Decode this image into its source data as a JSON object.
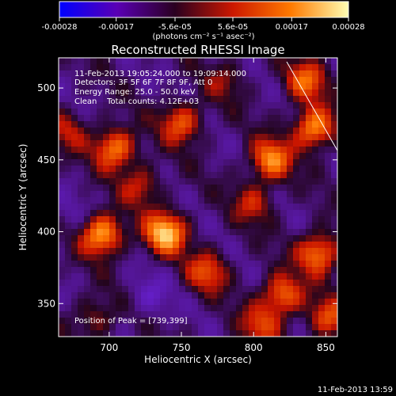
{
  "chart_data": {
    "type": "heatmap",
    "title": "Reconstructed RHESSI Image",
    "xlabel": "Heliocentric X (arcsec)",
    "ylabel": "Heliocentric Y (arcsec)",
    "xlim": [
      665,
      858
    ],
    "ylim": [
      327,
      521
    ],
    "x_ticks": [
      700,
      750,
      800,
      850
    ],
    "y_ticks": [
      350,
      400,
      450,
      500
    ],
    "colorbar": {
      "ticks": [
        "-0.00028",
        "-0.00017",
        "-5.6e-05",
        "5.6e-05",
        "0.00017",
        "0.00028"
      ],
      "tick_values": [
        -0.00028,
        -0.00017,
        -5.6e-05,
        5.6e-05,
        0.00017,
        0.00028
      ],
      "range": [
        -0.00028,
        0.00028
      ],
      "unit_label": "(photons cm⁻² s⁻¹ asec⁻²)",
      "colors": [
        "#0000ff",
        "#5a00b4",
        "#2a0020",
        "#cc1800",
        "#ff7a00",
        "#ffffb4"
      ]
    },
    "annotations": [
      "11-Feb-2013 19:05:24.000 to 19:09:14.000",
      "Detectors: 3F 5F 6F 7F 8F 9F, Att 0",
      "Energy Range: 25.0 - 50.0 keV",
      "Clean    Total counts: 4.12E+03",
      "Position of Peak = [739,399]"
    ],
    "peak_position": [
      739,
      399
    ],
    "sources": [
      {
        "x": 739,
        "y": 399,
        "value": 0.00028
      },
      {
        "x": 695,
        "y": 398,
        "value": 0.00026
      },
      {
        "x": 704,
        "y": 458,
        "value": 0.00022
      },
      {
        "x": 750,
        "y": 476,
        "value": 0.00018
      },
      {
        "x": 842,
        "y": 472,
        "value": 0.00024
      },
      {
        "x": 836,
        "y": 505,
        "value": 0.00018
      },
      {
        "x": 812,
        "y": 450,
        "value": 0.00022
      },
      {
        "x": 800,
        "y": 420,
        "value": 0.00012
      },
      {
        "x": 845,
        "y": 385,
        "value": 0.00022
      },
      {
        "x": 820,
        "y": 356,
        "value": 0.0002
      },
      {
        "x": 768,
        "y": 372,
        "value": 0.00016
      },
      {
        "x": 722,
        "y": 432,
        "value": 0.00012
      },
      {
        "x": 690,
        "y": 340,
        "value": 0.0001
      },
      {
        "x": 805,
        "y": 335,
        "value": 0.00014
      },
      {
        "x": 780,
        "y": 505,
        "value": 8e-05
      },
      {
        "x": 852,
        "y": 340,
        "value": 0.00016
      },
      {
        "x": 672,
        "y": 470,
        "value": 0.0001
      },
      {
        "x": 728,
        "y": 355,
        "value": -8e-05
      },
      {
        "x": 672,
        "y": 410,
        "value": -4e-05
      }
    ]
  },
  "footer": {
    "timestamp": "11-Feb-2013 13:59"
  }
}
